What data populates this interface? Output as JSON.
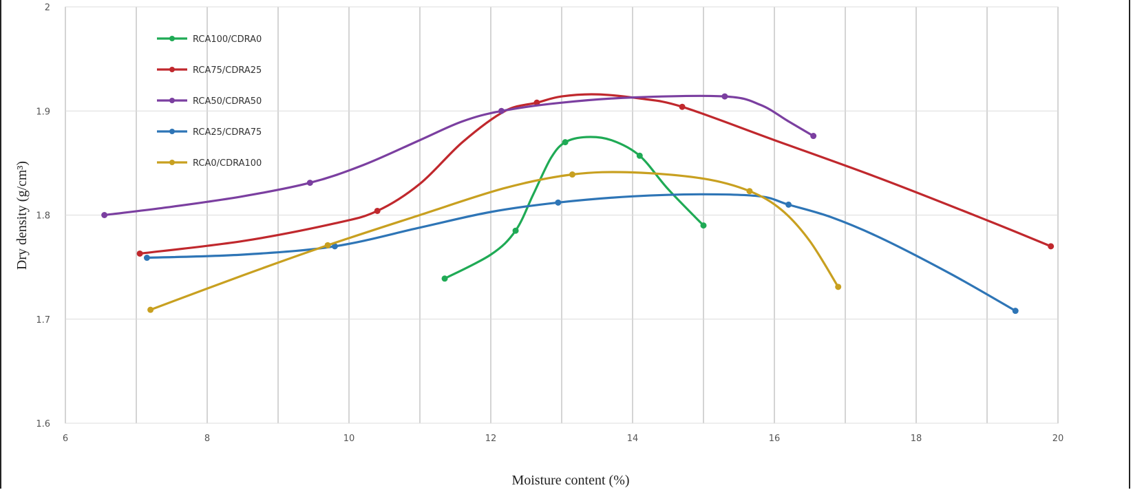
{
  "chart_data": {
    "type": "line",
    "title": "",
    "xlabel": "Moisture content (%)",
    "ylabel": "Dry density (g/cm³)",
    "xlim": [
      6,
      20
    ],
    "ylim": [
      1.6,
      2.0
    ],
    "xticks": [
      6,
      8,
      10,
      12,
      14,
      16,
      18,
      20
    ],
    "yticks": [
      1.6,
      1.7,
      1.8,
      1.9,
      2.0
    ],
    "ytick_labels": [
      "1.6",
      "1.7",
      "1.8",
      "1.9",
      "2"
    ],
    "vertical_gridlines": [
      6,
      7,
      8,
      9,
      10,
      11,
      12,
      13,
      14,
      15,
      16,
      17,
      18,
      19,
      20
    ],
    "grid": true,
    "legend_position": "top-left",
    "series": [
      {
        "name": "RCA100/CDRA0",
        "color": "#1faa55",
        "points": [
          [
            11.35,
            1.739
          ],
          [
            12.35,
            1.785
          ],
          [
            13.05,
            1.87
          ],
          [
            14.1,
            1.857
          ],
          [
            15.0,
            1.79
          ]
        ],
        "curve": [
          [
            11.35,
            1.739
          ],
          [
            12.0,
            1.762
          ],
          [
            12.35,
            1.785
          ],
          [
            12.6,
            1.82
          ],
          [
            12.85,
            1.855
          ],
          [
            13.05,
            1.87
          ],
          [
            13.35,
            1.875
          ],
          [
            13.7,
            1.872
          ],
          [
            14.1,
            1.857
          ],
          [
            14.5,
            1.825
          ],
          [
            15.0,
            1.79
          ]
        ]
      },
      {
        "name": "RCA75/CDRA25",
        "color": "#c0282d",
        "points": [
          [
            7.05,
            1.763
          ],
          [
            10.4,
            1.804
          ],
          [
            12.65,
            1.908
          ],
          [
            14.7,
            1.904
          ],
          [
            19.9,
            1.77
          ]
        ],
        "curve": [
          [
            7.05,
            1.763
          ],
          [
            8.5,
            1.775
          ],
          [
            9.8,
            1.792
          ],
          [
            10.4,
            1.804
          ],
          [
            11.0,
            1.83
          ],
          [
            11.6,
            1.87
          ],
          [
            12.2,
            1.9
          ],
          [
            12.65,
            1.908
          ],
          [
            13.0,
            1.914
          ],
          [
            13.5,
            1.916
          ],
          [
            14.1,
            1.912
          ],
          [
            14.7,
            1.904
          ],
          [
            16.0,
            1.872
          ],
          [
            17.5,
            1.835
          ],
          [
            19.0,
            1.795
          ],
          [
            19.9,
            1.77
          ]
        ]
      },
      {
        "name": "RCA50/CDRA50",
        "color": "#7b3fa0",
        "points": [
          [
            6.55,
            1.8
          ],
          [
            9.45,
            1.831
          ],
          [
            12.15,
            1.9
          ],
          [
            15.3,
            1.914
          ],
          [
            16.55,
            1.876
          ]
        ],
        "curve": [
          [
            6.55,
            1.8
          ],
          [
            7.5,
            1.808
          ],
          [
            8.5,
            1.818
          ],
          [
            9.45,
            1.831
          ],
          [
            10.2,
            1.848
          ],
          [
            11.0,
            1.872
          ],
          [
            11.6,
            1.89
          ],
          [
            12.15,
            1.9
          ],
          [
            13.0,
            1.908
          ],
          [
            14.0,
            1.913
          ],
          [
            15.3,
            1.914
          ],
          [
            15.8,
            1.906
          ],
          [
            16.2,
            1.89
          ],
          [
            16.55,
            1.876
          ]
        ]
      },
      {
        "name": "RCA25/CDRA75",
        "color": "#2e75b6",
        "points": [
          [
            7.15,
            1.759
          ],
          [
            9.8,
            1.77
          ],
          [
            12.95,
            1.812
          ],
          [
            16.2,
            1.81
          ],
          [
            19.4,
            1.708
          ]
        ],
        "curve": [
          [
            7.15,
            1.759
          ],
          [
            8.5,
            1.762
          ],
          [
            9.8,
            1.77
          ],
          [
            11.0,
            1.788
          ],
          [
            12.0,
            1.803
          ],
          [
            12.95,
            1.812
          ],
          [
            14.0,
            1.818
          ],
          [
            15.0,
            1.82
          ],
          [
            15.8,
            1.818
          ],
          [
            16.2,
            1.81
          ],
          [
            16.8,
            1.798
          ],
          [
            17.5,
            1.778
          ],
          [
            18.5,
            1.743
          ],
          [
            19.4,
            1.708
          ]
        ]
      },
      {
        "name": "RCA0/CDRA100",
        "color": "#c8a020",
        "points": [
          [
            7.2,
            1.709
          ],
          [
            9.7,
            1.771
          ],
          [
            13.15,
            1.839
          ],
          [
            15.65,
            1.823
          ],
          [
            16.9,
            1.731
          ]
        ],
        "curve": [
          [
            7.2,
            1.709
          ],
          [
            8.5,
            1.742
          ],
          [
            9.7,
            1.771
          ],
          [
            11.0,
            1.8
          ],
          [
            12.2,
            1.826
          ],
          [
            13.15,
            1.839
          ],
          [
            14.0,
            1.841
          ],
          [
            15.0,
            1.835
          ],
          [
            15.65,
            1.823
          ],
          [
            16.1,
            1.805
          ],
          [
            16.5,
            1.775
          ],
          [
            16.9,
            1.731
          ]
        ]
      }
    ]
  }
}
